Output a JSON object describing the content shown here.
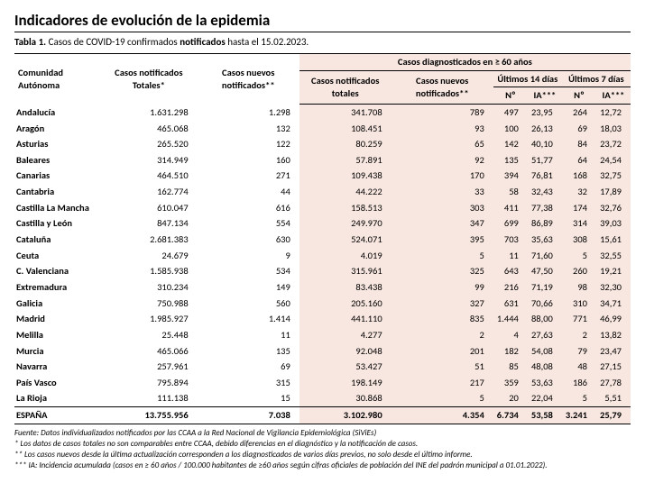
{
  "title": "Indicadores de evolución de la epidemia",
  "caption_prefix": "Tabla 1.",
  "caption_text_1": " Casos de COVID-19 confirmados ",
  "caption_bold": "notificados",
  "caption_text_2": " hasta el 15.02.2023.",
  "header": {
    "comunidad": "Comunidad Autónoma",
    "casos_totales": "Casos notificados Totales*",
    "casos_nuevos": "Casos nuevos notificados**",
    "group_60": "Casos diagnosticados en ≥ 60 años",
    "sub_casos_totales": "Casos notificados totales",
    "sub_casos_nuevos": "Casos nuevos notificados**",
    "ult14": "Últimos 14 días",
    "ult7": "Últimos 7 días",
    "n": "Nº",
    "ia": "IA***"
  },
  "rows": [
    {
      "c": "Andalucía",
      "t": "1.631.298",
      "n": "1.298",
      "d60t": "341.708",
      "d60n": "789",
      "n14": "497",
      "ia14": "23,95",
      "n7": "264",
      "ia7": "12,72"
    },
    {
      "c": "Aragón",
      "t": "465.068",
      "n": "132",
      "d60t": "108.451",
      "d60n": "93",
      "n14": "100",
      "ia14": "26,13",
      "n7": "69",
      "ia7": "18,03"
    },
    {
      "c": "Asturias",
      "t": "265.520",
      "n": "122",
      "d60t": "80.259",
      "d60n": "65",
      "n14": "142",
      "ia14": "40,10",
      "n7": "84",
      "ia7": "23,72"
    },
    {
      "c": "Baleares",
      "t": "314.949",
      "n": "160",
      "d60t": "57.891",
      "d60n": "92",
      "n14": "135",
      "ia14": "51,77",
      "n7": "64",
      "ia7": "24,54"
    },
    {
      "c": "Canarias",
      "t": "464.510",
      "n": "271",
      "d60t": "109.438",
      "d60n": "170",
      "n14": "394",
      "ia14": "76,81",
      "n7": "168",
      "ia7": "32,75"
    },
    {
      "c": "Cantabria",
      "t": "162.774",
      "n": "44",
      "d60t": "44.222",
      "d60n": "33",
      "n14": "58",
      "ia14": "32,43",
      "n7": "32",
      "ia7": "17,89"
    },
    {
      "c": "Castilla La Mancha",
      "t": "610.047",
      "n": "616",
      "d60t": "158.513",
      "d60n": "303",
      "n14": "411",
      "ia14": "77,38",
      "n7": "174",
      "ia7": "32,76"
    },
    {
      "c": "Castilla y León",
      "t": "847.134",
      "n": "554",
      "d60t": "249.970",
      "d60n": "347",
      "n14": "699",
      "ia14": "86,89",
      "n7": "314",
      "ia7": "39,03"
    },
    {
      "c": "Cataluña",
      "t": "2.681.383",
      "n": "630",
      "d60t": "524.071",
      "d60n": "395",
      "n14": "703",
      "ia14": "35,63",
      "n7": "308",
      "ia7": "15,61"
    },
    {
      "c": "Ceuta",
      "t": "24.679",
      "n": "9",
      "d60t": "4.019",
      "d60n": "5",
      "n14": "11",
      "ia14": "71,60",
      "n7": "5",
      "ia7": "32,55"
    },
    {
      "c": "C. Valenciana",
      "t": "1.585.938",
      "n": "534",
      "d60t": "315.961",
      "d60n": "325",
      "n14": "643",
      "ia14": "47,50",
      "n7": "260",
      "ia7": "19,21"
    },
    {
      "c": "Extremadura",
      "t": "310.234",
      "n": "149",
      "d60t": "83.438",
      "d60n": "99",
      "n14": "216",
      "ia14": "71,19",
      "n7": "98",
      "ia7": "32,30"
    },
    {
      "c": "Galicia",
      "t": "750.988",
      "n": "560",
      "d60t": "205.160",
      "d60n": "327",
      "n14": "631",
      "ia14": "70,66",
      "n7": "310",
      "ia7": "34,71"
    },
    {
      "c": "Madrid",
      "t": "1.985.927",
      "n": "1.414",
      "d60t": "441.110",
      "d60n": "835",
      "n14": "1.444",
      "ia14": "88,00",
      "n7": "771",
      "ia7": "46,99"
    },
    {
      "c": "Melilla",
      "t": "25.448",
      "n": "11",
      "d60t": "4.277",
      "d60n": "2",
      "n14": "4",
      "ia14": "27,63",
      "n7": "2",
      "ia7": "13,82"
    },
    {
      "c": "Murcia",
      "t": "465.066",
      "n": "135",
      "d60t": "92.048",
      "d60n": "201",
      "n14": "182",
      "ia14": "54,08",
      "n7": "79",
      "ia7": "23,47"
    },
    {
      "c": "Navarra",
      "t": "257.961",
      "n": "69",
      "d60t": "53.427",
      "d60n": "51",
      "n14": "85",
      "ia14": "48,08",
      "n7": "48",
      "ia7": "27,15"
    },
    {
      "c": "País Vasco",
      "t": "795.894",
      "n": "315",
      "d60t": "198.149",
      "d60n": "217",
      "n14": "359",
      "ia14": "53,63",
      "n7": "186",
      "ia7": "27,78"
    },
    {
      "c": "La Rioja",
      "t": "111.138",
      "n": "15",
      "d60t": "30.868",
      "d60n": "5",
      "n14": "20",
      "ia14": "22,04",
      "n7": "5",
      "ia7": "5,51"
    }
  ],
  "total": {
    "c": "ESPAÑA",
    "t": "13.755.956",
    "n": "7.038",
    "d60t": "3.102.980",
    "d60n": "4.354",
    "n14": "6.734",
    "ia14": "53,58",
    "n7": "3.241",
    "ia7": "25,79"
  },
  "footnotes": [
    "Fuente: Datos individualizados notificados por las CCAA a la Red Nacional de Vigilancia Epidemiológica (SiViEs)",
    "* Los datos de casos totales no son comparables entre CCAA, debido diferencias en el diagnóstico y la notificación de casos.",
    "** Los casos nuevos desde la última actualización corresponden a los diagnosticados de varios días previos, no solo desde el último informe.",
    "*** IA: Incidencia acumulada (casos en ≥ 60 años / 100.000 habitantes de ≥60 años según cifras oficiales de población del INE del padrón municipal a 01.01.2022)."
  ],
  "colors": {
    "peach": "#f8e7e0",
    "text": "#000000",
    "bg": "#ffffff"
  }
}
